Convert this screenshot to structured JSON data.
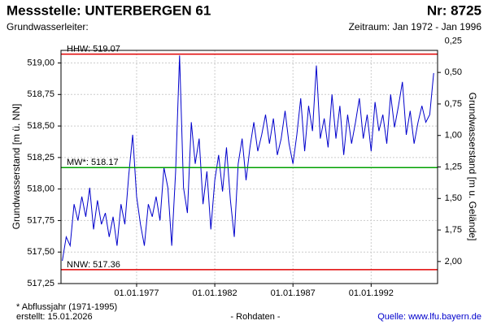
{
  "chart_data": {
    "type": "line",
    "title": "Messstelle: UNTERBERGEN 61",
    "number": "Nr: 8725",
    "subtitle": "Grundwasserleiter:",
    "period": "Zeitraum: Jan 1972 - Jan 1996",
    "y_label": "Grundwasserstand [m ü. NN]",
    "y2_label": "Grundwasserstand [m u. Gelände]",
    "footnote": "* Abflussjahr (1971-1995)",
    "created": "erstellt:  15.01.2026",
    "data_note": "- Rohdaten -",
    "source": "Quelle: www.lfu.bayern.de",
    "grid": true,
    "xlim": [
      "1972-03-01",
      "1996-04-01"
    ],
    "xticks": [
      {
        "value": "1977-01-01",
        "label": "01.01.1977"
      },
      {
        "value": "1982-01-01",
        "label": "01.01.1982"
      },
      {
        "value": "1987-01-01",
        "label": "01.01.1987"
      },
      {
        "value": "1992-01-01",
        "label": "01.01.1992"
      }
    ],
    "ylim": [
      517.25,
      519.1
    ],
    "yticks": [
      {
        "value": 517.25,
        "label": "517,25"
      },
      {
        "value": 517.5,
        "label": "517,50"
      },
      {
        "value": 517.75,
        "label": "517,75"
      },
      {
        "value": 518,
        "label": "518,00"
      },
      {
        "value": 518.25,
        "label": "518,25"
      },
      {
        "value": 518.5,
        "label": "518,50"
      },
      {
        "value": 518.75,
        "label": "518,75"
      },
      {
        "value": 519,
        "label": "519,00"
      }
    ],
    "y2lim": [
      0.325,
      2.175
    ],
    "y2ticks": [
      {
        "value": 0.25,
        "label": "0,25"
      },
      {
        "value": 0.5,
        "label": "0,50"
      },
      {
        "value": 0.75,
        "label": "0,75"
      },
      {
        "value": 1,
        "label": "1,00"
      },
      {
        "value": 1.25,
        "label": "1,25"
      },
      {
        "value": 1.5,
        "label": "1,50"
      },
      {
        "value": 1.75,
        "label": "1,75"
      },
      {
        "value": 2,
        "label": "2,00"
      }
    ],
    "reference_lines": [
      {
        "label": "HHW: 519.07",
        "value": 519.07,
        "color": "#e00000"
      },
      {
        "label": "MW*: 518.17",
        "value": 518.17,
        "color": "#00a000"
      },
      {
        "label": "NNW: 517.36",
        "value": 517.36,
        "color": "#e00000"
      }
    ],
    "x": [
      "1972-04-01",
      "1972-07-01",
      "1972-10-01",
      "1973-01-01",
      "1973-04-01",
      "1973-07-01",
      "1973-10-01",
      "1974-01-01",
      "1974-04-01",
      "1974-07-01",
      "1974-10-01",
      "1975-01-01",
      "1975-04-01",
      "1975-07-01",
      "1975-10-01",
      "1976-01-01",
      "1976-04-01",
      "1976-07-01",
      "1976-10-01",
      "1977-01-01",
      "1977-04-01",
      "1977-07-01",
      "1977-10-01",
      "1978-01-01",
      "1978-04-01",
      "1978-07-01",
      "1978-10-01",
      "1979-01-01",
      "1979-04-01",
      "1979-07-01",
      "1979-10-01",
      "1980-01-01",
      "1980-04-01",
      "1980-07-01",
      "1980-10-01",
      "1981-01-01",
      "1981-04-01",
      "1981-07-01",
      "1981-10-01",
      "1982-01-01",
      "1982-04-01",
      "1982-07-01",
      "1982-10-01",
      "1983-01-01",
      "1983-04-01",
      "1983-07-01",
      "1983-10-01",
      "1984-01-01",
      "1984-04-01",
      "1984-07-01",
      "1984-10-01",
      "1985-01-01",
      "1985-04-01",
      "1985-07-01",
      "1985-10-01",
      "1986-01-01",
      "1986-04-01",
      "1986-07-01",
      "1986-10-01",
      "1987-01-01",
      "1987-04-01",
      "1987-07-01",
      "1987-10-01",
      "1988-01-01",
      "1988-04-01",
      "1988-07-01",
      "1988-10-01",
      "1989-01-01",
      "1989-04-01",
      "1989-07-01",
      "1989-10-01",
      "1990-01-01",
      "1990-04-01",
      "1990-07-01",
      "1990-10-01",
      "1991-01-01",
      "1991-04-01",
      "1991-07-01",
      "1991-10-01",
      "1992-01-01",
      "1992-04-01",
      "1992-07-01",
      "1992-10-01",
      "1993-01-01",
      "1993-04-01",
      "1993-07-01",
      "1993-10-01",
      "1994-01-01",
      "1994-04-01",
      "1994-07-01",
      "1994-10-01",
      "1995-01-01",
      "1995-04-01",
      "1995-07-01",
      "1995-10-01",
      "1996-01-01"
    ],
    "series": [
      {
        "color": "#0000cc",
        "values": [
          517.43,
          517.62,
          517.55,
          517.88,
          517.75,
          517.94,
          517.78,
          518.01,
          517.68,
          517.91,
          517.72,
          517.81,
          517.62,
          517.78,
          517.55,
          517.88,
          517.72,
          518.11,
          518.43,
          517.94,
          517.72,
          517.55,
          517.88,
          517.78,
          517.94,
          517.75,
          518.17,
          518.01,
          517.55,
          518.14,
          519.06,
          518.01,
          517.81,
          518.53,
          518.2,
          518.4,
          517.88,
          518.14,
          517.68,
          518.07,
          518.27,
          517.98,
          518.33,
          517.91,
          517.62,
          518.2,
          518.4,
          518.07,
          518.33,
          518.53,
          518.3,
          518.43,
          518.59,
          518.36,
          518.56,
          518.27,
          518.4,
          518.62,
          518.36,
          518.2,
          518.43,
          518.72,
          518.3,
          518.66,
          518.46,
          518.98,
          518.4,
          518.56,
          518.33,
          518.75,
          518.4,
          518.66,
          518.27,
          518.59,
          518.36,
          518.53,
          518.72,
          518.4,
          518.59,
          518.3,
          518.69,
          518.46,
          518.59,
          518.36,
          518.75,
          518.49,
          518.66,
          518.85,
          518.43,
          518.62,
          518.36,
          518.53,
          518.66,
          518.53,
          518.59,
          518.92
        ]
      }
    ]
  }
}
